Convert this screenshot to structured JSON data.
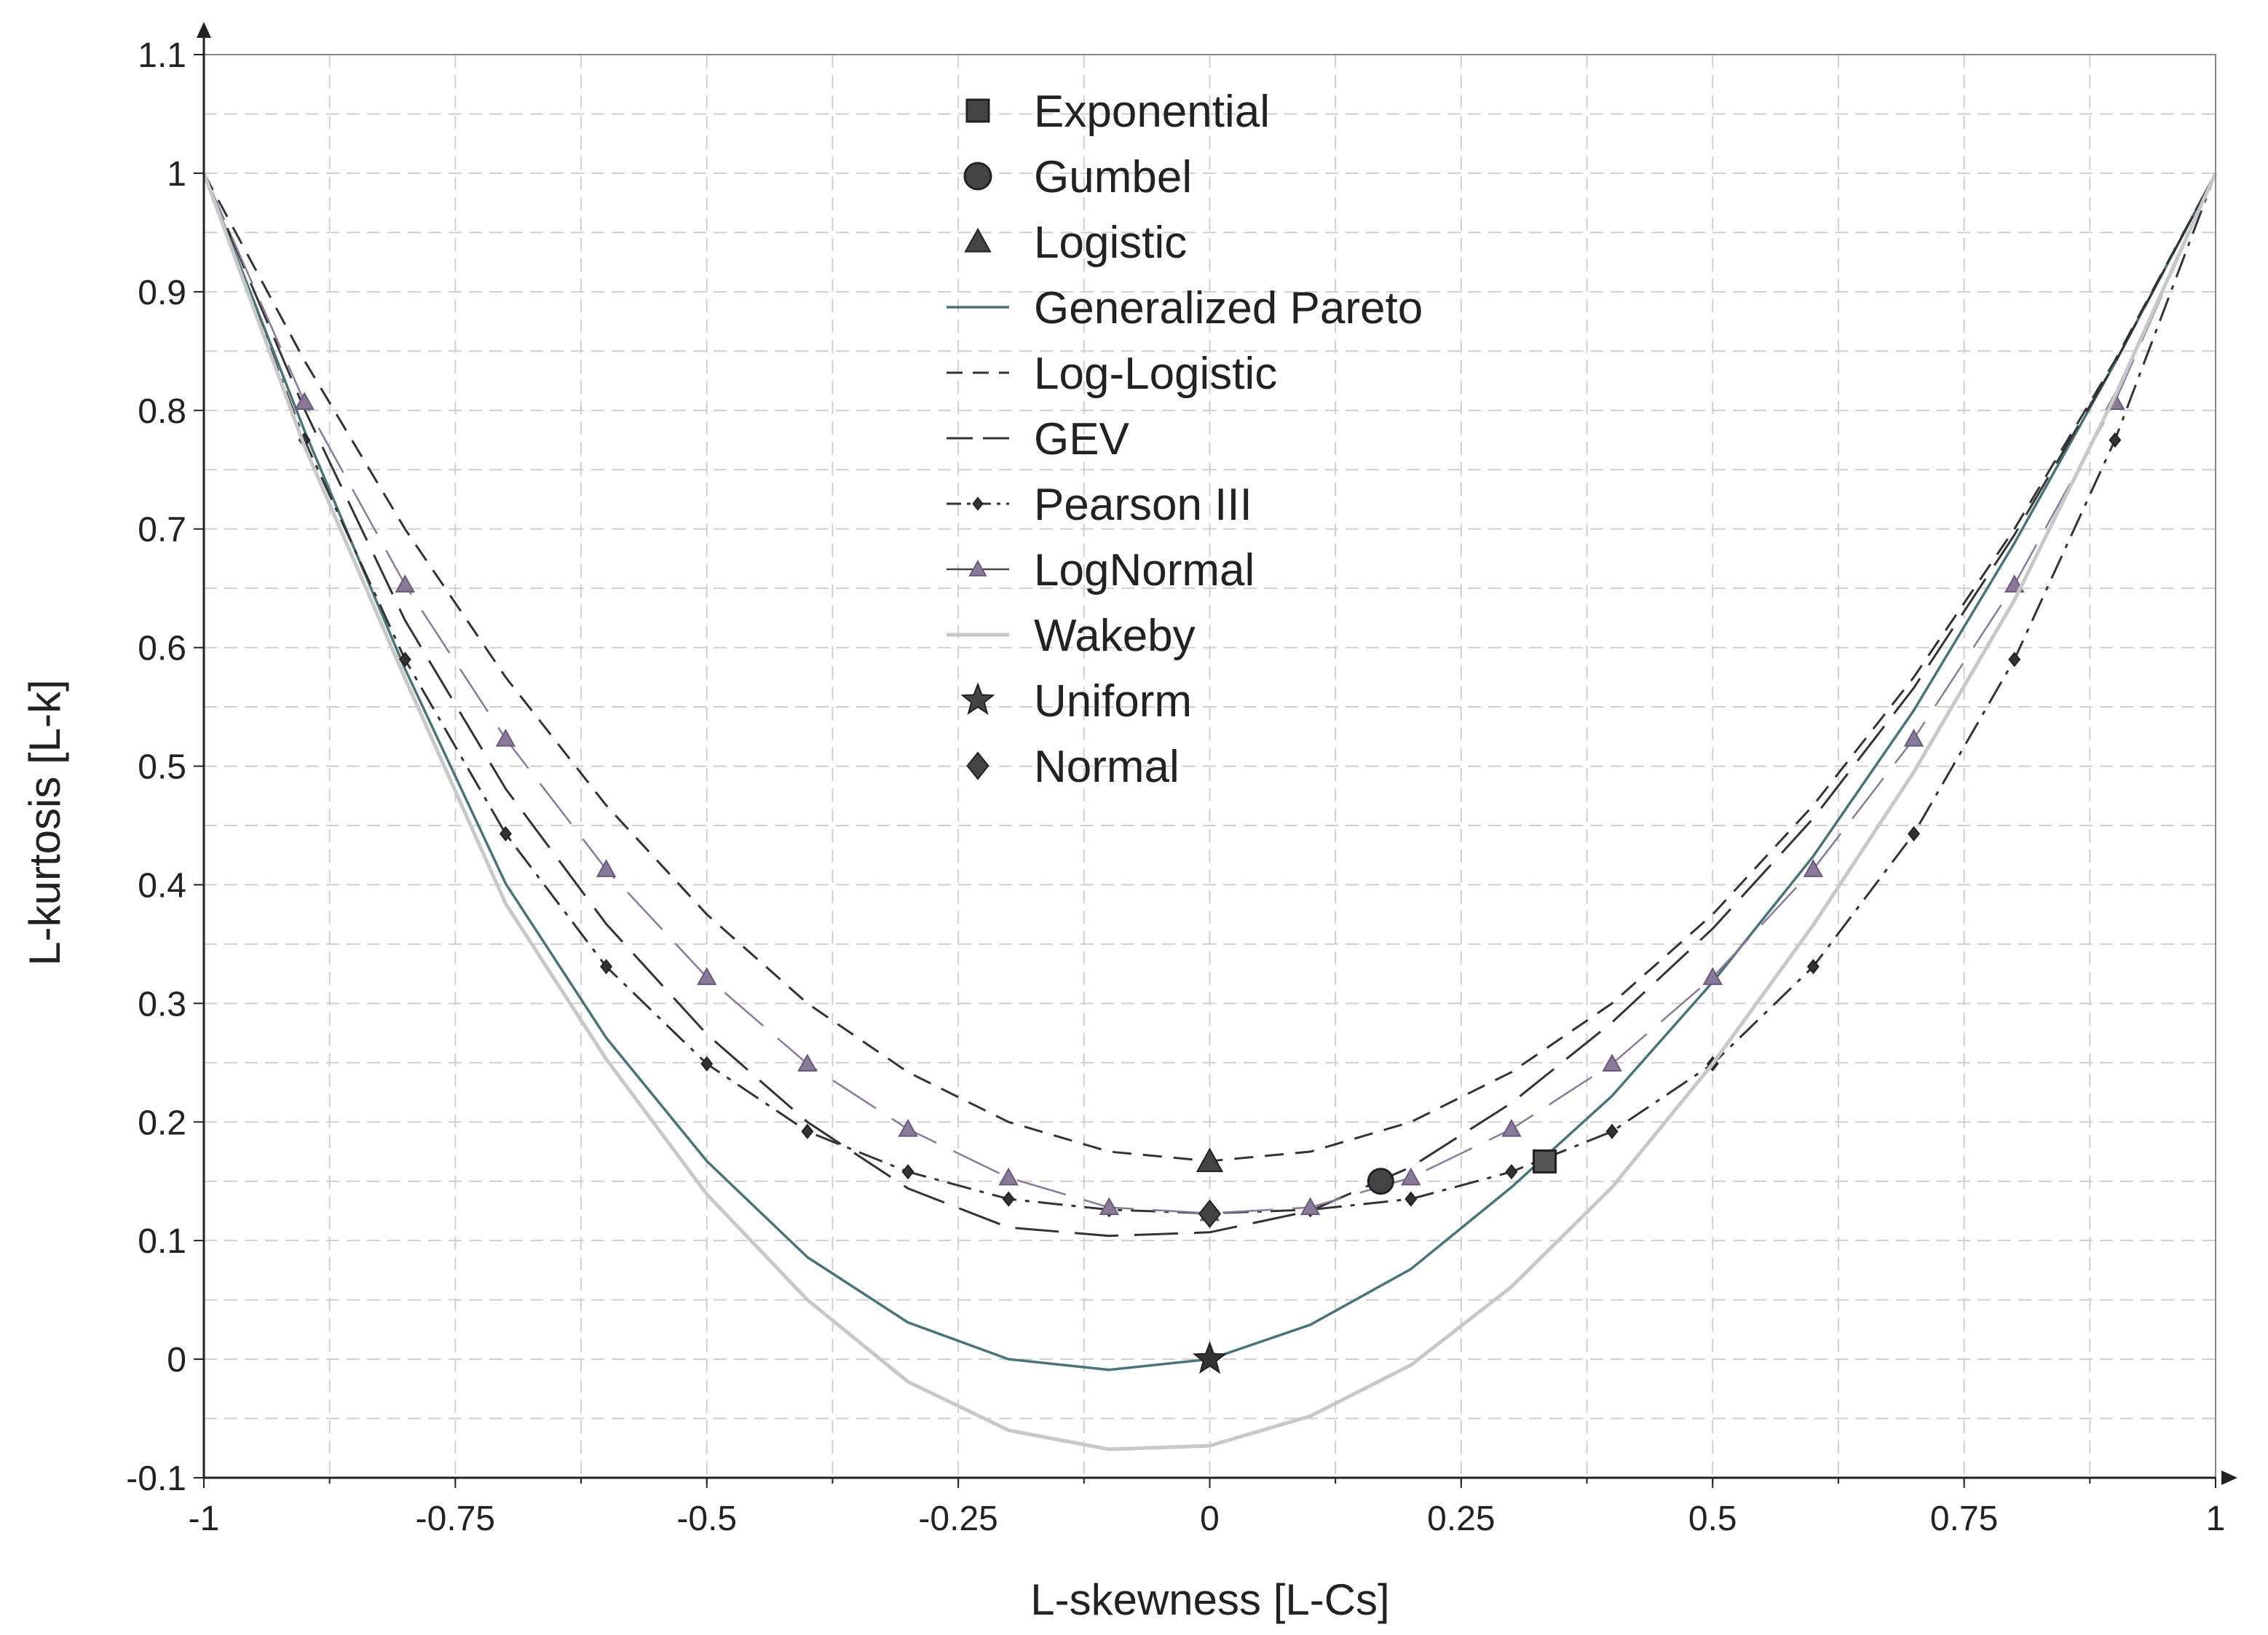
{
  "chart_data": {
    "type": "line",
    "title": "",
    "xlabel": "L-skewness [L-Cs]",
    "ylabel": "L-kurtosis [L-k]",
    "xlim": [
      -1,
      1
    ],
    "ylim": [
      -0.1,
      1.1
    ],
    "grid": true,
    "legend_position": "top-center",
    "x_ticks": [
      "-1",
      "-0.75",
      "-0.5",
      "-0.25",
      "0",
      "0.25",
      "0.5",
      "0.75",
      "1"
    ],
    "x_tick_values": [
      -1,
      -0.75,
      -0.5,
      -0.25,
      0,
      0.25,
      0.5,
      0.75,
      1
    ],
    "y_ticks": [
      "-0.1",
      "0",
      "0.1",
      "0.2",
      "0.3",
      "0.4",
      "0.5",
      "0.6",
      "0.7",
      "0.8",
      "0.9",
      "1",
      "1.1"
    ],
    "y_tick_values": [
      -0.1,
      0,
      0.1,
      0.2,
      0.3,
      0.4,
      0.5,
      0.6,
      0.7,
      0.8,
      0.9,
      1,
      1.1
    ],
    "points": [
      {
        "name": "Exponential",
        "x": 0.333,
        "y": 0.1667,
        "symbol": "square",
        "color": "#555555"
      },
      {
        "name": "Gumbel",
        "x": 0.17,
        "y": 0.15,
        "symbol": "circle",
        "color": "#444444"
      },
      {
        "name": "Logistic",
        "x": 0.0,
        "y": 0.1667,
        "symbol": "triangle",
        "color": "#444444"
      },
      {
        "name": "Uniform",
        "x": 0.0,
        "y": 0.0,
        "symbol": "star",
        "color": "#333333"
      },
      {
        "name": "Normal",
        "x": 0.0,
        "y": 0.1226,
        "symbol": "diamond",
        "color": "#444444"
      }
    ],
    "series": [
      {
        "name": "Generalized Pareto",
        "style": "solid",
        "color": "#4a7378",
        "x": [
          -1,
          -0.9,
          -0.8,
          -0.7,
          -0.6,
          -0.5,
          -0.4,
          -0.3,
          -0.2,
          -0.1,
          0,
          0.1,
          0.2,
          0.3,
          0.4,
          0.5,
          0.6,
          0.7,
          0.8,
          0.9,
          1
        ],
        "values": [
          1.0,
          0.783,
          0.582,
          0.401,
          0.271,
          0.167,
          0.086,
          0.031,
          0.0,
          -0.009,
          0.0,
          0.029,
          0.076,
          0.145,
          0.222,
          0.318,
          0.424,
          0.547,
          0.688,
          0.84,
          1.0
        ]
      },
      {
        "name": "Log-Logistic",
        "style": "dash",
        "color": "#333333",
        "x": [
          -1,
          -0.9,
          -0.8,
          -0.7,
          -0.6,
          -0.5,
          -0.4,
          -0.3,
          -0.2,
          -0.1,
          0,
          0.1,
          0.2,
          0.3,
          0.4,
          0.5,
          0.6,
          0.7,
          0.8,
          0.9,
          1
        ],
        "values": [
          1.0,
          0.842,
          0.7,
          0.575,
          0.467,
          0.375,
          0.3,
          0.242,
          0.2,
          0.175,
          0.167,
          0.175,
          0.2,
          0.242,
          0.3,
          0.375,
          0.467,
          0.575,
          0.7,
          0.842,
          1.0
        ]
      },
      {
        "name": "GEV",
        "style": "longdash",
        "color": "#333333",
        "x": [
          -1,
          -0.9,
          -0.8,
          -0.7,
          -0.6,
          -0.5,
          -0.4,
          -0.3,
          -0.2,
          -0.1,
          0,
          0.1,
          0.2,
          0.3,
          0.4,
          0.5,
          0.6,
          0.7,
          0.8,
          0.9,
          1
        ],
        "values": [
          1.0,
          0.801,
          0.623,
          0.481,
          0.367,
          0.274,
          0.2,
          0.144,
          0.111,
          0.104,
          0.107,
          0.125,
          0.162,
          0.216,
          0.284,
          0.363,
          0.456,
          0.566,
          0.695,
          0.84,
          1.0
        ]
      },
      {
        "name": "Pearson III",
        "style": "dashdot",
        "color": "#333333",
        "marker": "diamond",
        "x": [
          -1,
          -0.9,
          -0.8,
          -0.7,
          -0.6,
          -0.5,
          -0.4,
          -0.3,
          -0.2,
          -0.1,
          0,
          0.1,
          0.2,
          0.3,
          0.4,
          0.5,
          0.6,
          0.7,
          0.8,
          0.9,
          1
        ],
        "values": [
          1.0,
          0.775,
          0.59,
          0.443,
          0.331,
          0.249,
          0.192,
          0.158,
          0.135,
          0.126,
          0.123,
          0.126,
          0.135,
          0.158,
          0.192,
          0.249,
          0.331,
          0.443,
          0.59,
          0.775,
          1.0
        ]
      },
      {
        "name": "LogNormal",
        "style": "longdash-thin",
        "color": "#8a7a9a",
        "marker": "triangle",
        "x": [
          -1,
          -0.9,
          -0.8,
          -0.7,
          -0.6,
          -0.5,
          -0.4,
          -0.3,
          -0.2,
          -0.1,
          0,
          0.1,
          0.2,
          0.3,
          0.4,
          0.5,
          0.6,
          0.7,
          0.8,
          0.9,
          1
        ],
        "values": [
          1.0,
          0.807,
          0.653,
          0.523,
          0.413,
          0.322,
          0.249,
          0.194,
          0.153,
          0.128,
          0.123,
          0.128,
          0.153,
          0.194,
          0.249,
          0.322,
          0.413,
          0.523,
          0.653,
          0.807,
          1.0
        ]
      },
      {
        "name": "Wakeby",
        "style": "solid-light",
        "color": "#c8c8c8",
        "x": [
          -1,
          -0.9,
          -0.8,
          -0.7,
          -0.6,
          -0.5,
          -0.4,
          -0.3,
          -0.2,
          -0.1,
          0,
          0.1,
          0.2,
          0.3,
          0.4,
          0.5,
          0.6,
          0.7,
          0.8,
          0.9,
          1
        ],
        "values": [
          1.0,
          0.77,
          0.574,
          0.384,
          0.253,
          0.139,
          0.05,
          -0.019,
          -0.06,
          -0.076,
          -0.073,
          -0.048,
          -0.005,
          0.061,
          0.145,
          0.249,
          0.366,
          0.495,
          0.64,
          0.812,
          1.0
        ]
      }
    ],
    "legend_entries": [
      {
        "label": "Exponential",
        "kind": "square"
      },
      {
        "label": "Gumbel",
        "kind": "circle"
      },
      {
        "label": "Logistic",
        "kind": "triangle"
      },
      {
        "label": "Generalized Pareto",
        "kind": "solid"
      },
      {
        "label": "Log-Logistic",
        "kind": "dash"
      },
      {
        "label": "GEV",
        "kind": "longdash"
      },
      {
        "label": "Pearson III",
        "kind": "dashdot"
      },
      {
        "label": "LogNormal",
        "kind": "longdash-thin"
      },
      {
        "label": "Wakeby",
        "kind": "solid-light"
      },
      {
        "label": "Uniform",
        "kind": "star"
      },
      {
        "label": "Normal",
        "kind": "diamond"
      }
    ]
  }
}
